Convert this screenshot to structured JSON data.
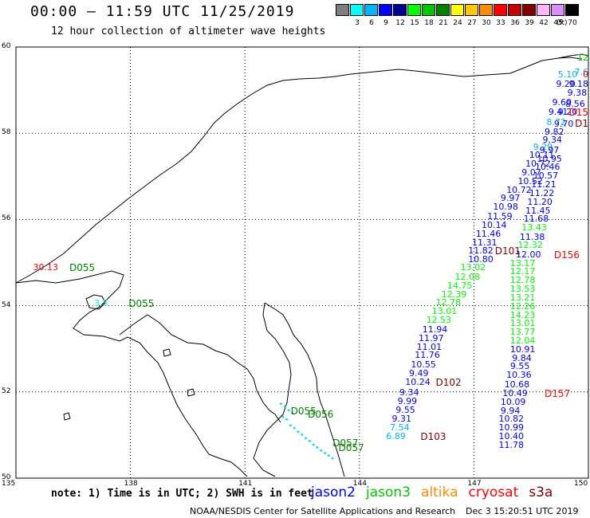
{
  "header": {
    "title": "00:00 – 11:59 UTC 11/25/2019",
    "subtitle": "12 hour collection of altimeter wave heights"
  },
  "color_scale": {
    "unit": "(ft)",
    "swatches": [
      {
        "label": "",
        "color": "#7f7f7f"
      },
      {
        "label": "3",
        "color": "#00ffff"
      },
      {
        "label": "6",
        "color": "#00b4ff"
      },
      {
        "label": "9",
        "color": "#0000ff"
      },
      {
        "label": "12",
        "color": "#000096"
      },
      {
        "label": "15",
        "color": "#00ff00"
      },
      {
        "label": "18",
        "color": "#00c800"
      },
      {
        "label": "21",
        "color": "#008200"
      },
      {
        "label": "24",
        "color": "#ffff00"
      },
      {
        "label": "27",
        "color": "#ffc800"
      },
      {
        "label": "30",
        "color": "#ff8c00"
      },
      {
        "label": "33",
        "color": "#ff0000"
      },
      {
        "label": "36",
        "color": "#c80000"
      },
      {
        "label": "39",
        "color": "#820000"
      },
      {
        "label": "42",
        "color": "#ffb4ff"
      },
      {
        "label": "45",
        "color": "#dc8cff"
      },
      {
        "label": "70",
        "color": "#000000"
      }
    ]
  },
  "map": {
    "lat_labels": [
      {
        "label": "60",
        "lat": 60
      },
      {
        "label": "58",
        "lat": 58
      },
      {
        "label": "56",
        "lat": 56
      },
      {
        "label": "54",
        "lat": 54
      },
      {
        "label": "52",
        "lat": 52
      },
      {
        "label": "50",
        "lat": 50
      }
    ],
    "lon_labels": [
      {
        "label": "135",
        "lon": 135
      },
      {
        "label": "138",
        "lon": 138
      },
      {
        "label": "141",
        "lon": 141
      },
      {
        "label": "144",
        "lon": 144
      },
      {
        "label": "147",
        "lon": 147
      },
      {
        "label": "150",
        "lon": 150
      }
    ]
  },
  "observations": [
    {
      "text": "12",
      "color": "#00c800",
      "lon": 149.95,
      "lat": 59.75
    },
    {
      "text": "5.10",
      "color": "#00b4ff",
      "lon": 149.2,
      "lat": 59.35
    },
    {
      "text": "7.6",
      "color": "#00b4ff",
      "lon": 149.8,
      "lat": 59.4
    },
    {
      "text": "0",
      "color": "#ff0000",
      "lon": 149.95,
      "lat": 59.35
    },
    {
      "text": "9.20",
      "color": "#0000ff",
      "lon": 149.15,
      "lat": 59.13
    },
    {
      "text": "9.18",
      "color": "#0000ff",
      "lon": 149.8,
      "lat": 59.13
    },
    {
      "text": "9.38",
      "color": "#0000ff",
      "lon": 149.45,
      "lat": 58.93
    },
    {
      "text": "9.60",
      "color": "#0000ff",
      "lon": 149.05,
      "lat": 58.7
    },
    {
      "text": "8.56",
      "color": "#0000ff",
      "lon": 149.4,
      "lat": 58.67
    },
    {
      "text": "9.41",
      "color": "#0000ff",
      "lon": 148.95,
      "lat": 58.48
    },
    {
      "text": "9.20",
      "color": "#0000ff",
      "lon": 149.2,
      "lat": 58.48
    },
    {
      "text": "D15",
      "color": "#ff0000",
      "lon": 149.75,
      "lat": 58.48
    },
    {
      "text": "8.72",
      "color": "#00b4ff",
      "lon": 148.9,
      "lat": 58.25
    },
    {
      "text": "9.70",
      "color": "#0000ff",
      "lon": 149.1,
      "lat": 58.2
    },
    {
      "text": "D1",
      "color": "#820000",
      "lon": 149.8,
      "lat": 58.22
    },
    {
      "text": "9.82",
      "color": "#0000ff",
      "lon": 148.85,
      "lat": 58.03
    },
    {
      "text": "9.34",
      "color": "#0000ff",
      "lon": 148.8,
      "lat": 57.83
    },
    {
      "text": "9.29",
      "color": "#00b4ff",
      "lon": 148.55,
      "lat": 57.68
    },
    {
      "text": "9.97",
      "color": "#0000ff",
      "lon": 148.72,
      "lat": 57.6
    },
    {
      "text": "10.11",
      "color": "#0000ff",
      "lon": 148.45,
      "lat": 57.48
    },
    {
      "text": "10.95",
      "color": "#0000ff",
      "lon": 148.65,
      "lat": 57.4
    },
    {
      "text": "10.72",
      "color": "#0000ff",
      "lon": 148.35,
      "lat": 57.28
    },
    {
      "text": "10.46",
      "color": "#0000ff",
      "lon": 148.6,
      "lat": 57.2
    },
    {
      "text": "9.07",
      "color": "#0000ff",
      "lon": 148.25,
      "lat": 57.08
    },
    {
      "text": "10.57",
      "color": "#0000ff",
      "lon": 148.55,
      "lat": 57.0
    },
    {
      "text": "10.52",
      "color": "#0000ff",
      "lon": 148.15,
      "lat": 56.88
    },
    {
      "text": "11.21",
      "color": "#0000ff",
      "lon": 148.5,
      "lat": 56.8
    },
    {
      "text": "10.72",
      "color": "#0000ff",
      "lon": 147.85,
      "lat": 56.68
    },
    {
      "text": "11.22",
      "color": "#0000ff",
      "lon": 148.45,
      "lat": 56.6
    },
    {
      "text": "9.97",
      "color": "#0000ff",
      "lon": 147.7,
      "lat": 56.48
    },
    {
      "text": "11.20",
      "color": "#0000ff",
      "lon": 148.4,
      "lat": 56.4
    },
    {
      "text": "10.98",
      "color": "#0000ff",
      "lon": 147.5,
      "lat": 56.28
    },
    {
      "text": "11.45",
      "color": "#0000ff",
      "lon": 148.35,
      "lat": 56.2
    },
    {
      "text": "11.59",
      "color": "#0000ff",
      "lon": 147.35,
      "lat": 56.06
    },
    {
      "text": "11.68",
      "color": "#0000ff",
      "lon": 148.3,
      "lat": 56.0
    },
    {
      "text": "10.14",
      "color": "#0000ff",
      "lon": 147.2,
      "lat": 55.86
    },
    {
      "text": "13.43",
      "color": "#00ff00",
      "lon": 148.25,
      "lat": 55.8
    },
    {
      "text": "11.46",
      "color": "#0000ff",
      "lon": 147.05,
      "lat": 55.66
    },
    {
      "text": "11.38",
      "color": "#0000ff",
      "lon": 148.2,
      "lat": 55.58
    },
    {
      "text": "11.31",
      "color": "#0000ff",
      "lon": 146.95,
      "lat": 55.46
    },
    {
      "text": "12.32",
      "color": "#00ff00",
      "lon": 148.15,
      "lat": 55.4
    },
    {
      "text": "11.82",
      "color": "#0000ff",
      "lon": 146.85,
      "lat": 55.26
    },
    {
      "text": "D101",
      "color": "#820000",
      "lon": 147.55,
      "lat": 55.26
    },
    {
      "text": "12.00",
      "color": "#0000ff",
      "lon": 148.1,
      "lat": 55.18
    },
    {
      "text": "D156",
      "color": "#ff0000",
      "lon": 149.1,
      "lat": 55.18
    },
    {
      "text": "10.80",
      "color": "#0000ff",
      "lon": 146.85,
      "lat": 55.06
    },
    {
      "text": "13.17",
      "color": "#00ff00",
      "lon": 147.95,
      "lat": 54.98
    },
    {
      "text": "13.02",
      "color": "#00ff00",
      "lon": 146.65,
      "lat": 54.88
    },
    {
      "text": "12.17",
      "color": "#00ff00",
      "lon": 147.95,
      "lat": 54.78
    },
    {
      "text": "12.08",
      "color": "#00ff00",
      "lon": 146.5,
      "lat": 54.66
    },
    {
      "text": "12.78",
      "color": "#00ff00",
      "lon": 147.95,
      "lat": 54.58
    },
    {
      "text": "14.75",
      "color": "#00ff00",
      "lon": 146.3,
      "lat": 54.46
    },
    {
      "text": "13.53",
      "color": "#00ff00",
      "lon": 147.95,
      "lat": 54.38
    },
    {
      "text": "12.39",
      "color": "#00ff00",
      "lon": 146.15,
      "lat": 54.26
    },
    {
      "text": "13.21",
      "color": "#00ff00",
      "lon": 147.95,
      "lat": 54.18
    },
    {
      "text": "12.78",
      "color": "#00ff00",
      "lon": 146.0,
      "lat": 54.06
    },
    {
      "text": "12.26",
      "color": "#00ff00",
      "lon": 147.95,
      "lat": 53.98
    },
    {
      "text": "13.01",
      "color": "#00ff00",
      "lon": 145.9,
      "lat": 53.86
    },
    {
      "text": "14.23",
      "color": "#00ff00",
      "lon": 147.95,
      "lat": 53.78
    },
    {
      "text": "12.53",
      "color": "#00ff00",
      "lon": 145.75,
      "lat": 53.66
    },
    {
      "text": "13.01",
      "color": "#00ff00",
      "lon": 147.95,
      "lat": 53.58
    },
    {
      "text": "11.94",
      "color": "#0000ff",
      "lon": 145.65,
      "lat": 53.44
    },
    {
      "text": "13.77",
      "color": "#00ff00",
      "lon": 147.95,
      "lat": 53.38
    },
    {
      "text": "11.97",
      "color": "#0000ff",
      "lon": 145.55,
      "lat": 53.24
    },
    {
      "text": "12.04",
      "color": "#00ff00",
      "lon": 147.95,
      "lat": 53.18
    },
    {
      "text": "11.01",
      "color": "#0000ff",
      "lon": 145.5,
      "lat": 53.04
    },
    {
      "text": "10.91",
      "color": "#0000ff",
      "lon": 147.95,
      "lat": 52.98
    },
    {
      "text": "11.76",
      "color": "#0000ff",
      "lon": 145.45,
      "lat": 52.84
    },
    {
      "text": "9.84",
      "color": "#0000ff",
      "lon": 148.0,
      "lat": 52.78
    },
    {
      "text": "10.55",
      "color": "#0000ff",
      "lon": 145.35,
      "lat": 52.62
    },
    {
      "text": "9.55",
      "color": "#0000ff",
      "lon": 147.95,
      "lat": 52.58
    },
    {
      "text": "9.49",
      "color": "#0000ff",
      "lon": 145.3,
      "lat": 52.42
    },
    {
      "text": "10.36",
      "color": "#0000ff",
      "lon": 147.85,
      "lat": 52.38
    },
    {
      "text": "10.24",
      "color": "#0000ff",
      "lon": 145.2,
      "lat": 52.22
    },
    {
      "text": "D102",
      "color": "#820000",
      "lon": 146.0,
      "lat": 52.22
    },
    {
      "text": "10.68",
      "color": "#0000ff",
      "lon": 147.8,
      "lat": 52.16
    },
    {
      "text": "9.34",
      "color": "#0000ff",
      "lon": 145.05,
      "lat": 51.98
    },
    {
      "text": "10.49",
      "color": "#0000ff",
      "lon": 147.75,
      "lat": 51.96
    },
    {
      "text": "D157",
      "color": "#ff0000",
      "lon": 148.85,
      "lat": 51.96
    },
    {
      "text": "9.99",
      "color": "#0000ff",
      "lon": 145.0,
      "lat": 51.78
    },
    {
      "text": "10.09",
      "color": "#0000ff",
      "lon": 147.7,
      "lat": 51.76
    },
    {
      "text": "9.55",
      "color": "#0000ff",
      "lon": 144.95,
      "lat": 51.58
    },
    {
      "text": "9.94",
      "color": "#0000ff",
      "lon": 147.7,
      "lat": 51.56
    },
    {
      "text": "9.31",
      "color": "#0000ff",
      "lon": 144.85,
      "lat": 51.36
    },
    {
      "text": "10.82",
      "color": "#0000ff",
      "lon": 147.65,
      "lat": 51.36
    },
    {
      "text": "7.54",
      "color": "#00b4ff",
      "lon": 144.8,
      "lat": 51.16
    },
    {
      "text": "10.99",
      "color": "#0000ff",
      "lon": 147.65,
      "lat": 51.16
    },
    {
      "text": "6.89",
      "color": "#00b4ff",
      "lon": 144.7,
      "lat": 50.96
    },
    {
      "text": "D103",
      "color": "#820000",
      "lon": 145.6,
      "lat": 50.96
    },
    {
      "text": "10.40",
      "color": "#0000ff",
      "lon": 147.65,
      "lat": 50.96
    },
    {
      "text": "11.78",
      "color": "#0000ff",
      "lon": 147.65,
      "lat": 50.76
    },
    {
      "text": "30.13",
      "color": "#ff0000",
      "lon": 135.45,
      "lat": 54.88
    },
    {
      "text": "D055",
      "color": "#008200",
      "lon": 136.4,
      "lat": 54.88
    },
    {
      "text": "3.5",
      "color": "#00ffff",
      "lon": 137.05,
      "lat": 54.05
    },
    {
      "text": "D055",
      "color": "#008200",
      "lon": 137.95,
      "lat": 54.05
    },
    {
      "text": "D055",
      "color": "#008200",
      "lon": 142.2,
      "lat": 51.55
    },
    {
      "text": "D056",
      "color": "#008200",
      "lon": 142.65,
      "lat": 51.48
    },
    {
      "text": "D057",
      "color": "#008200",
      "lon": 143.3,
      "lat": 50.82
    },
    {
      "text": "D057",
      "color": "#008200",
      "lon": 143.45,
      "lat": 50.7
    }
  ],
  "footer": {
    "note": "note: 1) Time is in UTC; 2) SWH is in feet",
    "legend": [
      {
        "label": "jason2",
        "color": "#0000ff"
      },
      {
        "label": "jason3",
        "color": "#00c800"
      },
      {
        "label": "altika",
        "color": "#ff8c00"
      },
      {
        "label": "cryosat",
        "color": "#ff0000"
      },
      {
        "label": "s3a",
        "color": "#820000"
      }
    ],
    "credit": "NOAA/NESDIS Center for Satellite Applications and Research",
    "timestamp": "Dec  3 15:20:51 UTC 2019"
  }
}
